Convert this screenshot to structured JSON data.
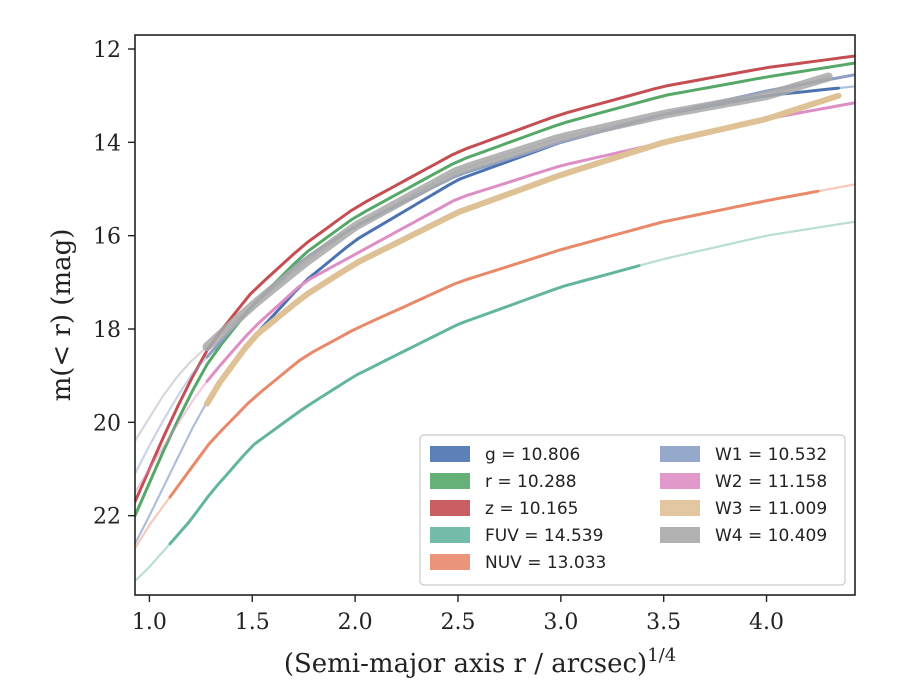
{
  "chart_data": {
    "type": "line",
    "xlabel": "(Semi-major axis r / arcsec)",
    "xlabel_sup": "1/4",
    "ylabel": "m(< r) (mag)",
    "xlim": [
      0.93,
      4.43
    ],
    "ylim": [
      23.7,
      11.7
    ],
    "y_inverted": true,
    "x_ticks": [
      "1.0",
      "1.5",
      "2.0",
      "2.5",
      "3.0",
      "3.5",
      "4.0"
    ],
    "y_ticks": [
      "12",
      "14",
      "16",
      "18",
      "20",
      "22"
    ],
    "legend_position": "lower-right",
    "legend_columns": 2,
    "series": [
      {
        "name": "g = 10.806",
        "color": "#4c72b0",
        "x": [
          0.93,
          1.0,
          1.1,
          1.2,
          1.3,
          1.5,
          1.75,
          2.0,
          2.5,
          3.0,
          3.5,
          4.0,
          4.43
        ],
        "y": [
          22.6,
          22.0,
          21.1,
          20.2,
          19.4,
          18.2,
          17.0,
          16.1,
          14.8,
          14.0,
          13.4,
          13.0,
          12.8
        ],
        "range": [
          1.28,
          4.35
        ]
      },
      {
        "name": "r = 10.288",
        "color": "#55a868",
        "x": [
          0.93,
          1.0,
          1.1,
          1.2,
          1.3,
          1.5,
          1.75,
          2.0,
          2.5,
          3.0,
          3.5,
          4.0,
          4.43
        ],
        "y": [
          22.0,
          21.3,
          20.3,
          19.4,
          18.6,
          17.5,
          16.4,
          15.6,
          14.4,
          13.6,
          13.0,
          12.6,
          12.3
        ],
        "range": [
          0.93,
          4.43
        ]
      },
      {
        "name": "z = 10.165",
        "color": "#c44e52",
        "x": [
          0.93,
          1.0,
          1.1,
          1.2,
          1.3,
          1.5,
          1.75,
          2.0,
          2.5,
          3.0,
          3.5,
          4.0,
          4.43
        ],
        "y": [
          21.7,
          21.0,
          20.0,
          19.1,
          18.3,
          17.2,
          16.2,
          15.4,
          14.2,
          13.4,
          12.8,
          12.4,
          12.15
        ],
        "range": [
          0.93,
          4.43
        ]
      },
      {
        "name": "FUV = 14.539",
        "color": "#64b5a0",
        "x": [
          0.93,
          1.0,
          1.1,
          1.2,
          1.3,
          1.5,
          1.75,
          2.0,
          2.5,
          3.0,
          3.5,
          4.0,
          4.43
        ],
        "y": [
          23.4,
          23.1,
          22.6,
          22.1,
          21.5,
          20.5,
          19.7,
          19.0,
          17.9,
          17.1,
          16.5,
          16.0,
          15.7
        ],
        "range": [
          1.1,
          3.38
        ]
      },
      {
        "name": "NUV = 13.033",
        "color": "#e8896a",
        "x": [
          0.93,
          1.0,
          1.1,
          1.2,
          1.3,
          1.5,
          1.75,
          2.0,
          2.5,
          3.0,
          3.5,
          4.0,
          4.43
        ],
        "y": [
          22.7,
          22.2,
          21.6,
          21.0,
          20.4,
          19.5,
          18.6,
          18.0,
          17.0,
          16.3,
          15.7,
          15.25,
          14.9
        ],
        "range": [
          1.1,
          4.25
        ]
      },
      {
        "name": "W1 = 10.532",
        "color": "#8c9ec8",
        "x": [
          0.93,
          1.0,
          1.1,
          1.2,
          1.3,
          1.5,
          1.75,
          2.0,
          2.5,
          3.0,
          3.5,
          4.0,
          4.43
        ],
        "y": [
          21.1,
          20.5,
          19.7,
          19.0,
          18.5,
          17.5,
          16.5,
          15.8,
          14.7,
          14.0,
          13.4,
          12.9,
          12.55
        ],
        "range": [
          1.28,
          4.43
        ]
      },
      {
        "name": "W2 = 11.158",
        "color": "#dd8ec4",
        "x": [
          0.93,
          1.0,
          1.1,
          1.2,
          1.3,
          1.5,
          1.75,
          2.0,
          2.5,
          3.0,
          3.5,
          4.0,
          4.43
        ],
        "y": [
          21.5,
          21.0,
          20.3,
          19.6,
          19.0,
          18.0,
          17.0,
          16.4,
          15.2,
          14.5,
          14.0,
          13.5,
          13.15
        ],
        "range": [
          1.28,
          4.43
        ]
      },
      {
        "name": "W3 = 11.009",
        "color": "#dfc196",
        "x": [
          1.28,
          1.3,
          1.5,
          1.75,
          2.0,
          2.5,
          3.0,
          3.5,
          4.0,
          4.35
        ],
        "y": [
          19.6,
          19.4,
          18.2,
          17.3,
          16.6,
          15.5,
          14.7,
          14.0,
          13.5,
          13.0
        ],
        "range": [
          1.28,
          4.35
        ]
      },
      {
        "name": "W4 = 10.409",
        "color": "#a8a8a8",
        "x": [
          0.93,
          1.0,
          1.1,
          1.2,
          1.3,
          1.5,
          1.75,
          2.0,
          2.5,
          3.0,
          3.5,
          4.0,
          4.3
        ],
        "y": [
          20.4,
          19.9,
          19.2,
          18.7,
          18.3,
          17.5,
          16.6,
          15.8,
          14.6,
          13.9,
          13.4,
          13.0,
          12.6
        ],
        "range": [
          1.28,
          4.3
        ]
      }
    ]
  }
}
